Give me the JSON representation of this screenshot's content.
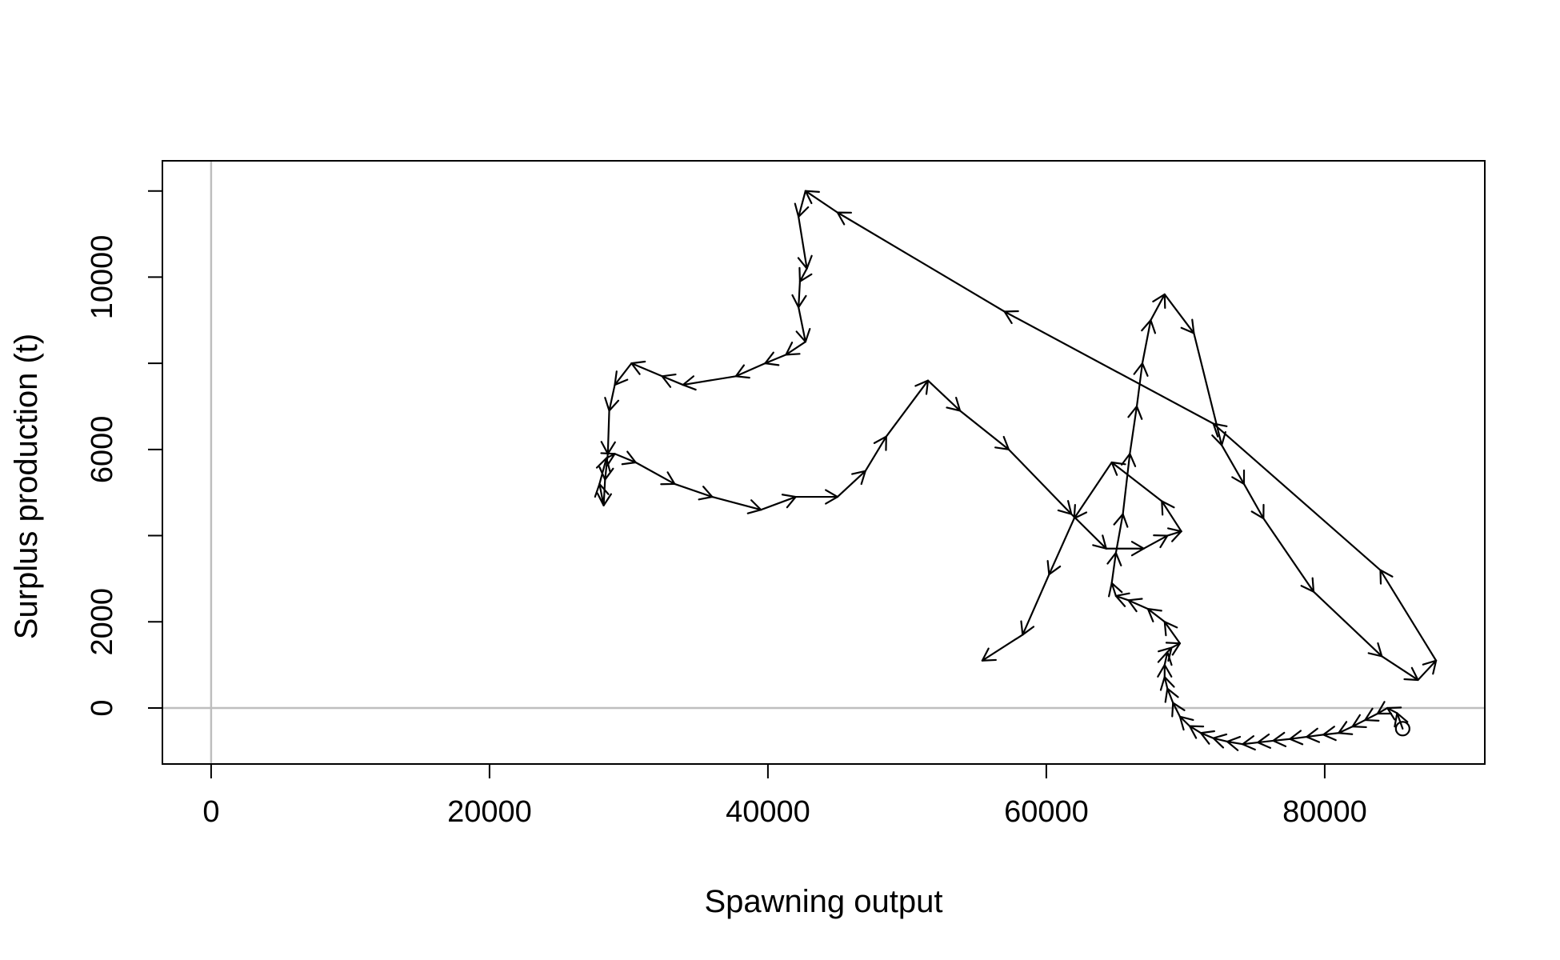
{
  "chart_data": {
    "type": "line",
    "title": "",
    "xlabel": "Spawning output",
    "ylabel": "Surplus production (t)",
    "xlim": [
      -3500,
      91500
    ],
    "ylim": [
      -1300,
      12700
    ],
    "xticks": [
      0,
      20000,
      40000,
      60000,
      80000
    ],
    "yticks": [
      0,
      2000,
      6000,
      10000
    ],
    "xtick_labels": [
      "0",
      "20000",
      "40000",
      "60000",
      "80000"
    ],
    "ytick_labels": [
      "0",
      "2000",
      "6000",
      "10000"
    ],
    "reference_lines": {
      "x": 0,
      "y": 0,
      "color": "#bebebe"
    },
    "start_marker": {
      "x": 85600,
      "y": -480,
      "shape": "open-circle"
    },
    "line_color": "#000000",
    "grid": false,
    "legend": "none",
    "series": [
      {
        "x": [
          85600,
          85200,
          84500,
          83800,
          82900,
          82000,
          81000,
          79900,
          78700,
          77500,
          76300,
          75200,
          74100,
          73000,
          72000,
          71100,
          70300,
          69600,
          69100,
          68700,
          68500,
          68500,
          68700,
          69000,
          69600,
          68500,
          67300,
          65900,
          65000,
          64700,
          65000,
          65500,
          66000,
          66500,
          66900,
          67500,
          68500,
          70600,
          72600,
          74200,
          75600,
          79200,
          84100,
          86700,
          88000,
          84000,
          72000,
          57000,
          45000,
          42700,
          42200,
          42800,
          42300,
          42200,
          42700,
          41300,
          39800,
          37700,
          33900,
          32400,
          30200,
          29000,
          28600,
          28500,
          28300,
          28200,
          27900,
          28400,
          29000,
          30500,
          33300,
          36000,
          39500,
          42000,
          45000,
          47000,
          48500,
          51500,
          53800,
          57300,
          61800,
          64300,
          67000,
          68700,
          69700,
          68300,
          64700,
          62000,
          60200,
          58300,
          55400
        ],
        "y": [
          -480,
          -120,
          0,
          -130,
          -280,
          -430,
          -580,
          -620,
          -670,
          -720,
          -760,
          -800,
          -840,
          -780,
          -700,
          -580,
          -420,
          -200,
          120,
          450,
          720,
          1000,
          1300,
          1400,
          1500,
          2000,
          2300,
          2500,
          2600,
          2900,
          3600,
          4500,
          5900,
          7000,
          8000,
          9000,
          9600,
          8700,
          6100,
          5200,
          4400,
          2700,
          1200,
          650,
          1100,
          3200,
          6600,
          9200,
          11500,
          12000,
          11400,
          10200,
          9900,
          9300,
          8500,
          8200,
          8000,
          7700,
          7500,
          7700,
          8000,
          7500,
          6900,
          5900,
          5300,
          4700,
          5200,
          5800,
          5900,
          5700,
          5200,
          4900,
          4600,
          4900,
          4900,
          5500,
          6300,
          7600,
          6900,
          6000,
          4500,
          3700,
          3700,
          4000,
          4100,
          4800,
          5700,
          4400,
          3100,
          1700,
          1100
        ]
      }
    ]
  }
}
